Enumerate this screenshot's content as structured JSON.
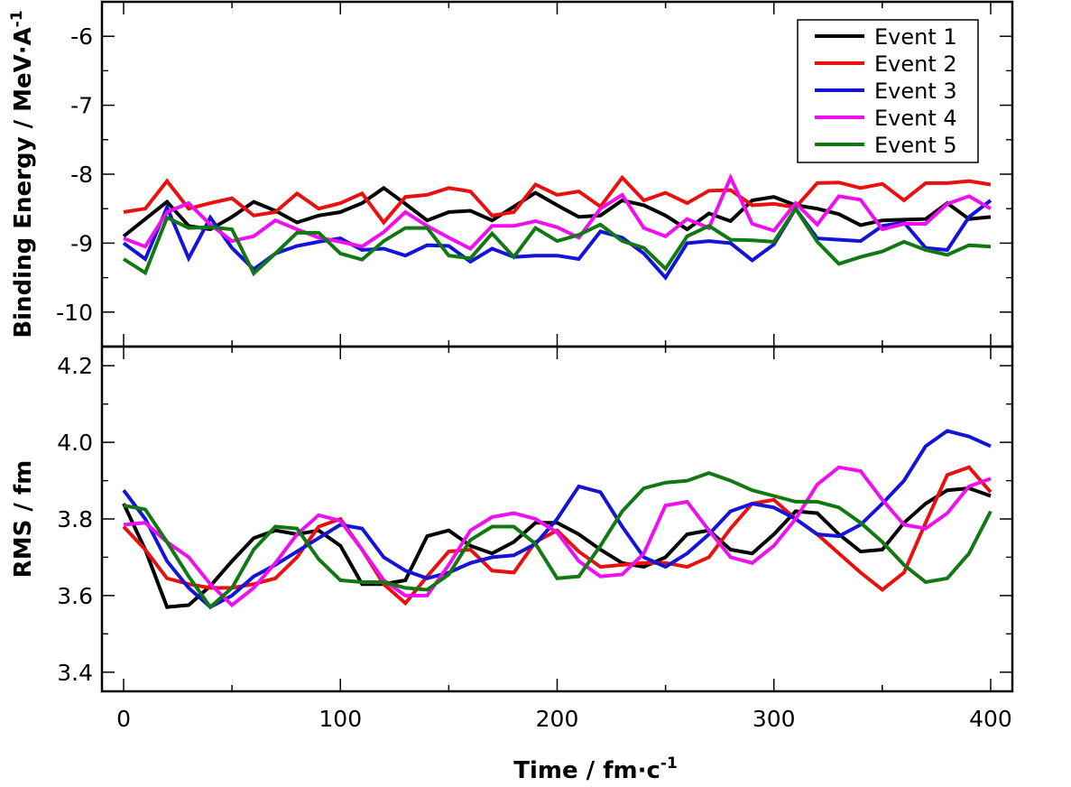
{
  "chart_data": {
    "type": "line",
    "x_label": {
      "main": "Time / fm·c",
      "sup": "-1"
    },
    "x_ticks": [
      0,
      100,
      200,
      300,
      400
    ],
    "xlim": [
      -10,
      410
    ],
    "x": [
      0,
      10,
      20,
      30,
      40,
      50,
      60,
      70,
      80,
      90,
      100,
      110,
      120,
      130,
      140,
      150,
      160,
      170,
      180,
      190,
      200,
      210,
      220,
      230,
      240,
      250,
      260,
      270,
      280,
      290,
      300,
      310,
      320,
      330,
      340,
      350,
      360,
      370,
      380,
      390,
      400
    ],
    "legend": {
      "position": "top-right"
    },
    "panels": [
      {
        "id": "binding-energy",
        "y_label": {
          "main": "Binding Energy / MeV·A",
          "sup": "-1"
        },
        "ylim": [
          -10.5,
          -5.5
        ],
        "y_ticks": [
          -10,
          -9,
          -8,
          -7,
          -6
        ],
        "series": [
          {
            "name": "Event 1",
            "color": "#000000",
            "values": [
              -8.9,
              -8.65,
              -8.4,
              -8.75,
              -8.8,
              -8.62,
              -8.4,
              -8.53,
              -8.7,
              -8.6,
              -8.55,
              -8.42,
              -8.2,
              -8.43,
              -8.67,
              -8.55,
              -8.53,
              -8.67,
              -8.47,
              -8.27,
              -8.45,
              -8.62,
              -8.6,
              -8.38,
              -8.45,
              -8.6,
              -8.8,
              -8.57,
              -8.68,
              -8.38,
              -8.33,
              -8.45,
              -8.5,
              -8.58,
              -8.74,
              -8.67,
              -8.66,
              -8.65,
              -8.42,
              -8.65,
              -8.62
            ]
          },
          {
            "name": "Event 2",
            "color": "#e8110f",
            "values": [
              -8.55,
              -8.5,
              -8.1,
              -8.5,
              -8.42,
              -8.35,
              -8.6,
              -8.55,
              -8.28,
              -8.5,
              -8.42,
              -8.28,
              -8.7,
              -8.33,
              -8.3,
              -8.2,
              -8.25,
              -8.6,
              -8.55,
              -8.15,
              -8.3,
              -8.25,
              -8.47,
              -8.05,
              -8.38,
              -8.27,
              -8.42,
              -8.24,
              -8.23,
              -8.45,
              -8.43,
              -8.48,
              -8.13,
              -8.12,
              -8.2,
              -8.14,
              -8.38,
              -8.13,
              -8.13,
              -8.1,
              -8.15
            ]
          },
          {
            "name": "Event 3",
            "color": "#1414d8",
            "values": [
              -9.0,
              -9.23,
              -8.48,
              -9.22,
              -8.63,
              -9.07,
              -9.38,
              -9.15,
              -9.04,
              -8.98,
              -8.93,
              -9.1,
              -9.08,
              -9.18,
              -9.03,
              -9.04,
              -9.27,
              -9.08,
              -9.2,
              -9.18,
              -9.18,
              -9.23,
              -8.83,
              -8.92,
              -9.15,
              -9.5,
              -9.0,
              -8.97,
              -9.0,
              -9.25,
              -9.02,
              -8.5,
              -8.93,
              -8.95,
              -8.97,
              -8.75,
              -8.7,
              -9.07,
              -9.1,
              -8.62,
              -8.38
            ]
          },
          {
            "name": "Event 4",
            "color": "#ee10ee",
            "values": [
              -8.93,
              -9.05,
              -8.55,
              -8.42,
              -8.73,
              -8.97,
              -8.9,
              -8.67,
              -8.8,
              -8.92,
              -8.98,
              -9.05,
              -8.84,
              -8.55,
              -8.75,
              -8.92,
              -9.08,
              -8.75,
              -8.75,
              -8.68,
              -8.77,
              -8.92,
              -8.5,
              -8.3,
              -8.78,
              -8.9,
              -8.65,
              -8.78,
              -8.05,
              -8.72,
              -8.82,
              -8.42,
              -8.73,
              -8.32,
              -8.37,
              -8.8,
              -8.72,
              -8.72,
              -8.43,
              -8.32,
              -8.5
            ]
          },
          {
            "name": "Event 5",
            "color": "#127812",
            "values": [
              -9.23,
              -9.43,
              -8.63,
              -8.78,
              -8.77,
              -8.8,
              -9.44,
              -9.15,
              -8.85,
              -8.85,
              -9.15,
              -9.24,
              -8.97,
              -8.78,
              -8.78,
              -9.18,
              -9.22,
              -8.86,
              -9.2,
              -8.78,
              -8.97,
              -8.88,
              -8.73,
              -8.97,
              -9.07,
              -9.37,
              -8.9,
              -8.75,
              -8.95,
              -8.96,
              -8.98,
              -8.5,
              -8.98,
              -9.3,
              -9.2,
              -9.12,
              -8.98,
              -9.1,
              -9.17,
              -9.03,
              -9.05
            ]
          }
        ]
      },
      {
        "id": "rms",
        "y_label": {
          "main": "RMS / fm",
          "sup": ""
        },
        "ylim": [
          3.35,
          4.25
        ],
        "y_ticks": [
          3.4,
          3.6,
          3.8,
          4.0,
          4.2
        ],
        "y_tick_labels": [
          "3.4",
          "3.6",
          "3.8",
          "4.0",
          "4.2"
        ],
        "series": [
          {
            "name": "Event 1",
            "color": "#000000",
            "values": [
              3.84,
              3.72,
              3.57,
              3.575,
              3.625,
              3.69,
              3.75,
              3.77,
              3.76,
              3.77,
              3.73,
              3.63,
              3.63,
              3.64,
              3.755,
              3.77,
              3.73,
              3.71,
              3.74,
              3.79,
              3.79,
              3.76,
              3.72,
              3.685,
              3.675,
              3.7,
              3.76,
              3.77,
              3.72,
              3.71,
              3.76,
              3.82,
              3.815,
              3.76,
              3.715,
              3.72,
              3.79,
              3.84,
              3.875,
              3.88,
              3.86
            ]
          },
          {
            "name": "Event 2",
            "color": "#e8110f",
            "values": [
              3.78,
              3.72,
              3.645,
              3.63,
              3.62,
              3.62,
              3.63,
              3.645,
              3.7,
              3.78,
              3.8,
              3.72,
              3.63,
              3.58,
              3.65,
              3.715,
              3.72,
              3.665,
              3.66,
              3.74,
              3.77,
              3.715,
              3.675,
              3.68,
              3.685,
              3.685,
              3.675,
              3.7,
              3.775,
              3.84,
              3.85,
              3.8,
              3.76,
              3.71,
              3.66,
              3.615,
              3.66,
              3.79,
              3.915,
              3.935,
              3.87
            ]
          },
          {
            "name": "Event 3",
            "color": "#1414d8",
            "values": [
              3.875,
              3.8,
              3.69,
              3.62,
              3.57,
              3.6,
              3.65,
              3.68,
              3.715,
              3.75,
              3.785,
              3.775,
              3.7,
              3.665,
              3.645,
              3.66,
              3.685,
              3.7,
              3.705,
              3.735,
              3.8,
              3.885,
              3.87,
              3.78,
              3.7,
              3.675,
              3.71,
              3.76,
              3.82,
              3.84,
              3.83,
              3.8,
              3.76,
              3.755,
              3.785,
              3.84,
              3.9,
              3.99,
              4.03,
              4.015,
              3.99
            ]
          },
          {
            "name": "Event 4",
            "color": "#ee10ee",
            "values": [
              3.785,
              3.79,
              3.74,
              3.7,
              3.63,
              3.575,
              3.62,
              3.685,
              3.76,
              3.81,
              3.795,
              3.72,
              3.64,
              3.6,
              3.6,
              3.68,
              3.77,
              3.805,
              3.815,
              3.8,
              3.765,
              3.69,
              3.65,
              3.655,
              3.71,
              3.835,
              3.845,
              3.77,
              3.7,
              3.685,
              3.73,
              3.8,
              3.89,
              3.935,
              3.925,
              3.85,
              3.785,
              3.775,
              3.815,
              3.885,
              3.905
            ]
          },
          {
            "name": "Event 5",
            "color": "#127812",
            "values": [
              3.835,
              3.825,
              3.74,
              3.65,
              3.57,
              3.62,
              3.72,
              3.78,
              3.775,
              3.695,
              3.64,
              3.635,
              3.635,
              3.62,
              3.615,
              3.655,
              3.745,
              3.78,
              3.78,
              3.735,
              3.645,
              3.65,
              3.73,
              3.82,
              3.88,
              3.895,
              3.9,
              3.92,
              3.9,
              3.875,
              3.86,
              3.845,
              3.845,
              3.83,
              3.79,
              3.74,
              3.68,
              3.635,
              3.645,
              3.71,
              3.82
            ]
          }
        ]
      }
    ]
  }
}
